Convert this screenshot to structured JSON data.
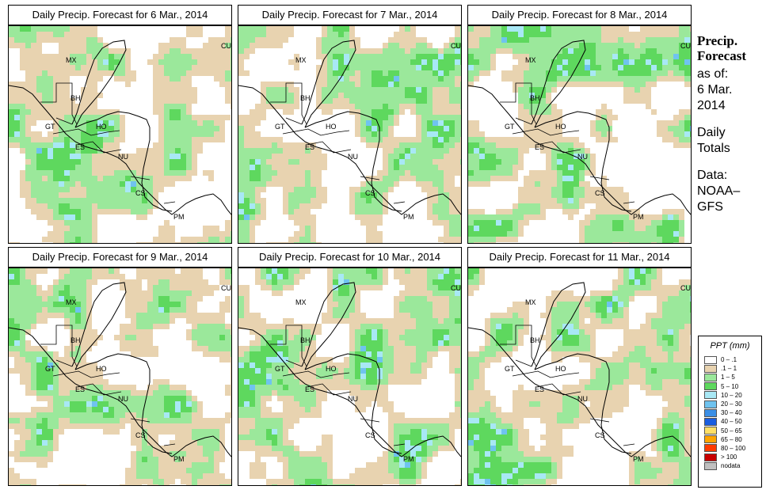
{
  "panels": [
    {
      "title": "Daily Precip. Forecast for  6 Mar., 2014",
      "seed": 11
    },
    {
      "title": "Daily Precip. Forecast for  7 Mar., 2014",
      "seed": 23
    },
    {
      "title": "Daily Precip. Forecast for  8 Mar., 2014",
      "seed": 37
    },
    {
      "title": "Daily Precip. Forecast for  9 Mar., 2014",
      "seed": 41
    },
    {
      "title": "Daily Precip. Forecast for  10 Mar., 2014",
      "seed": 53
    },
    {
      "title": "Daily Precip. Forecast for  11 Mar., 2014",
      "seed": 67
    }
  ],
  "country_labels": [
    "MX",
    "BH",
    "GT",
    "HO",
    "ES",
    "NU",
    "CS",
    "PM",
    "CU"
  ],
  "sidebar": {
    "heading_line1": "Precip.",
    "heading_line2": "Forecast",
    "asof_line1": "as of:",
    "asof_line2": "6 Mar.",
    "asof_line3": "2014",
    "daily_line1": "Daily",
    "daily_line2": "Totals",
    "data_line1": "Data:",
    "data_line2": "NOAA–",
    "data_line3": "GFS"
  },
  "legend": {
    "title": "PPT (mm)",
    "items": [
      {
        "label": "0 – .1",
        "color": "#ffffff"
      },
      {
        "label": ".1 – 1",
        "color": "#e8d3b0"
      },
      {
        "label": "1 – 5",
        "color": "#9be89b"
      },
      {
        "label": "5 – 10",
        "color": "#5ed85e"
      },
      {
        "label": "10 – 20",
        "color": "#a8e8f5"
      },
      {
        "label": "20 – 30",
        "color": "#6fc3ef"
      },
      {
        "label": "30 – 40",
        "color": "#3b8fe6"
      },
      {
        "label": "40 – 50",
        "color": "#1a5ee0"
      },
      {
        "label": "50 – 65",
        "color": "#ffe066"
      },
      {
        "label": "65 – 80",
        "color": "#ffa500"
      },
      {
        "label": "80 – 100",
        "color": "#ff3b00"
      },
      {
        "label": "> 100",
        "color": "#c80000"
      },
      {
        "label": "nodata",
        "color": "#c0c0c0"
      }
    ]
  }
}
